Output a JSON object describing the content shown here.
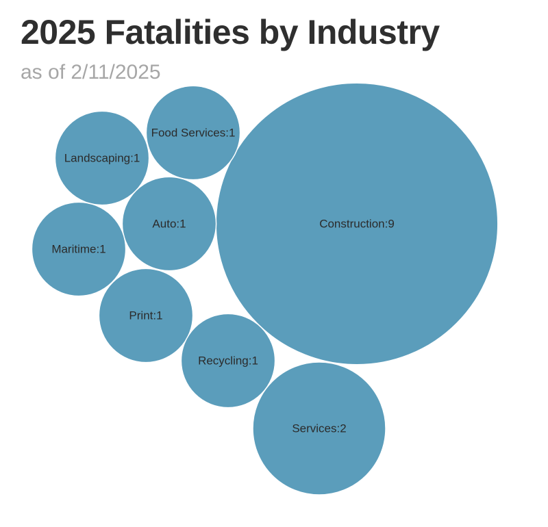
{
  "title": "2025 Fatalities by Industry",
  "subtitle": "as of 2/11/2025",
  "colors": {
    "bubble": "#5b9dbb",
    "bubble_stroke": "#ffffff",
    "title": "#2f2f2f",
    "subtitle": "#a6a6a6",
    "label": "#2b2b2b"
  },
  "chart_data": {
    "type": "bubble",
    "title": "2025 Fatalities by Industry",
    "subtitle": "as of 2/11/2025",
    "categories": [
      "Construction",
      "Services",
      "Food Services",
      "Landscaping",
      "Auto",
      "Maritime",
      "Print",
      "Recycling"
    ],
    "values": [
      9,
      2,
      1,
      1,
      1,
      1,
      1,
      1
    ],
    "labels": [
      "Construction:9",
      "Services:2",
      "Food Services:1",
      "Landscaping:1",
      "Auto:1",
      "Maritime:1",
      "Print:1",
      "Recycling:1"
    ],
    "legend": "none",
    "grid": false
  }
}
